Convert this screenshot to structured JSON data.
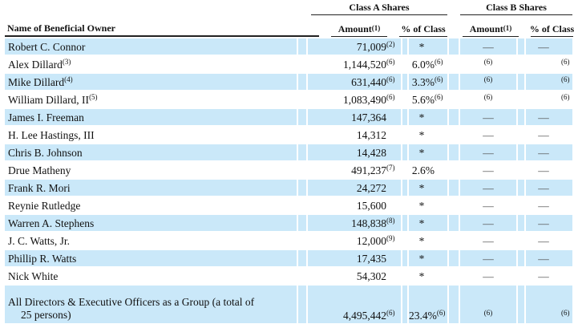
{
  "document": {
    "colors": {
      "row_highlight": "#cae8f9",
      "rule": "#222222"
    },
    "columns": {
      "class_a_label": "Class A Shares",
      "class_b_label": "Class B Shares",
      "name_label": "Name of Beneficial Owner",
      "amount_label": "Amount",
      "amount_sup": "(1)",
      "pct_label": "% of Class"
    },
    "rows": [
      {
        "name": "Robert C. Connor",
        "name_sup": "",
        "amount_a": "71,009",
        "amount_a_sup": "(2)",
        "pct_a": "*",
        "pct_a_sup": "",
        "amount_b": "—",
        "amount_b_sup": "",
        "pct_b": "—",
        "pct_b_sup": ""
      },
      {
        "name": "Alex Dillard",
        "name_sup": "(3)",
        "amount_a": "1,144,520",
        "amount_a_sup": "(6)",
        "pct_a": "6.0%",
        "pct_a_sup": "(6)",
        "amount_b": "",
        "amount_b_sup": "(6)",
        "pct_b": "",
        "pct_b_sup": "(6)"
      },
      {
        "name": "Mike Dillard",
        "name_sup": "(4)",
        "amount_a": "631,440",
        "amount_a_sup": "(6)",
        "pct_a": "3.3%",
        "pct_a_sup": "(6)",
        "amount_b": "",
        "amount_b_sup": "(6)",
        "pct_b": "",
        "pct_b_sup": "(6)"
      },
      {
        "name": "William Dillard, II",
        "name_sup": "(5)",
        "amount_a": "1,083,490",
        "amount_a_sup": "(6)",
        "pct_a": "5.6%",
        "pct_a_sup": "(6)",
        "amount_b": "",
        "amount_b_sup": "(6)",
        "pct_b": "",
        "pct_b_sup": "(6)"
      },
      {
        "name": "James I. Freeman",
        "name_sup": "",
        "amount_a": "147,364",
        "amount_a_sup": "",
        "pct_a": "*",
        "pct_a_sup": "",
        "amount_b": "—",
        "amount_b_sup": "",
        "pct_b": "—",
        "pct_b_sup": ""
      },
      {
        "name": "H. Lee Hastings, III",
        "name_sup": "",
        "amount_a": "14,312",
        "amount_a_sup": "",
        "pct_a": "*",
        "pct_a_sup": "",
        "amount_b": "—",
        "amount_b_sup": "",
        "pct_b": "—",
        "pct_b_sup": ""
      },
      {
        "name": "Chris B. Johnson",
        "name_sup": "",
        "amount_a": "14,428",
        "amount_a_sup": "",
        "pct_a": "*",
        "pct_a_sup": "",
        "amount_b": "—",
        "amount_b_sup": "",
        "pct_b": "—",
        "pct_b_sup": ""
      },
      {
        "name": "Drue Matheny",
        "name_sup": "",
        "amount_a": "491,237",
        "amount_a_sup": "(7)",
        "pct_a": "2.6%",
        "pct_a_sup": "",
        "amount_b": "—",
        "amount_b_sup": "",
        "pct_b": "—",
        "pct_b_sup": ""
      },
      {
        "name": "Frank R. Mori",
        "name_sup": "",
        "amount_a": "24,272",
        "amount_a_sup": "",
        "pct_a": "*",
        "pct_a_sup": "",
        "amount_b": "—",
        "amount_b_sup": "",
        "pct_b": "—",
        "pct_b_sup": ""
      },
      {
        "name": "Reynie Rutledge",
        "name_sup": "",
        "amount_a": "15,600",
        "amount_a_sup": "",
        "pct_a": "*",
        "pct_a_sup": "",
        "amount_b": "—",
        "amount_b_sup": "",
        "pct_b": "—",
        "pct_b_sup": ""
      },
      {
        "name": "Warren A. Stephens",
        "name_sup": "",
        "amount_a": "148,838",
        "amount_a_sup": "(8)",
        "pct_a": "*",
        "pct_a_sup": "",
        "amount_b": "—",
        "amount_b_sup": "",
        "pct_b": "—",
        "pct_b_sup": ""
      },
      {
        "name": "J. C. Watts, Jr.",
        "name_sup": "",
        "amount_a": "12,000",
        "amount_a_sup": "(9)",
        "pct_a": "*",
        "pct_a_sup": "",
        "amount_b": "—",
        "amount_b_sup": "",
        "pct_b": "—",
        "pct_b_sup": ""
      },
      {
        "name": "Phillip R. Watts",
        "name_sup": "",
        "amount_a": "17,435",
        "amount_a_sup": "",
        "pct_a": "*",
        "pct_a_sup": "",
        "amount_b": "—",
        "amount_b_sup": "",
        "pct_b": "—",
        "pct_b_sup": ""
      },
      {
        "name": "Nick White",
        "name_sup": "",
        "amount_a": "54,302",
        "amount_a_sup": "",
        "pct_a": "*",
        "pct_a_sup": "",
        "amount_b": "—",
        "amount_b_sup": "",
        "pct_b": "—",
        "pct_b_sup": ""
      }
    ],
    "group_row": {
      "name_line1": "All Directors & Executive Officers as a Group (a total of",
      "name_line2": "25 persons)",
      "amount_a": "4,495,442",
      "amount_a_sup": "(6)",
      "pct_a": "23.4%",
      "pct_a_sup": "(6)",
      "amount_b": "",
      "amount_b_sup": "(6)",
      "pct_b": "",
      "pct_b_sup": "(6)"
    }
  }
}
